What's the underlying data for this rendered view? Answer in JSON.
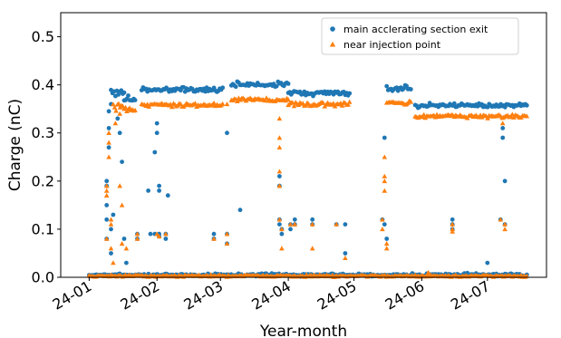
{
  "chart_data": {
    "type": "scatter",
    "xlabel": "Year-month",
    "ylabel": "Charge (nC)",
    "xticks": [
      "24-01",
      "24-02",
      "24-03",
      "24-04",
      "24-05",
      "24-06",
      "24-07"
    ],
    "yticks": [
      "0.0",
      "0.1",
      "0.2",
      "0.3",
      "0.4",
      "0.5"
    ],
    "xlim": [
      "2023-12-19",
      "2024-07-28"
    ],
    "ylim": [
      0,
      0.55
    ],
    "grid": false,
    "legend_position": "top-right",
    "series": [
      {
        "name": "main acclerating section exit",
        "marker": "circle",
        "color": "#1f77b4",
        "segments": [
          {
            "x0": "2024-01-01",
            "x1": "2024-07-19",
            "y": 0.005,
            "spread": 0.004
          },
          {
            "x0": "2024-01-11",
            "x1": "2024-01-17",
            "y": 0.385,
            "spread": 0.012
          },
          {
            "x0": "2024-01-17",
            "x1": "2024-01-22",
            "y": 0.37,
            "spread": 0.01
          },
          {
            "x0": "2024-01-25",
            "x1": "2024-03-02",
            "y": 0.39,
            "spread": 0.008
          },
          {
            "x0": "2024-03-06",
            "x1": "2024-04-01",
            "y": 0.4,
            "spread": 0.008
          },
          {
            "x0": "2024-04-01",
            "x1": "2024-04-29",
            "y": 0.383,
            "spread": 0.008
          },
          {
            "x0": "2024-05-16",
            "x1": "2024-05-27",
            "y": 0.393,
            "spread": 0.01
          },
          {
            "x0": "2024-05-29",
            "x1": "2024-07-19",
            "y": 0.357,
            "spread": 0.006
          }
        ],
        "points": [
          {
            "x": "2024-01-09",
            "y": 0.08
          },
          {
            "x": "2024-01-09",
            "y": 0.12
          },
          {
            "x": "2024-01-09",
            "y": 0.15
          },
          {
            "x": "2024-01-09",
            "y": 0.19
          },
          {
            "x": "2024-01-09",
            "y": 0.2
          },
          {
            "x": "2024-01-10",
            "y": 0.27
          },
          {
            "x": "2024-01-10",
            "y": 0.31
          },
          {
            "x": "2024-01-10",
            "y": 0.345
          },
          {
            "x": "2024-01-11",
            "y": 0.36
          },
          {
            "x": "2024-01-11",
            "y": 0.1
          },
          {
            "x": "2024-01-11",
            "y": 0.05
          },
          {
            "x": "2024-01-12",
            "y": 0.13
          },
          {
            "x": "2024-01-14",
            "y": 0.33
          },
          {
            "x": "2024-01-15",
            "y": 0.3
          },
          {
            "x": "2024-01-16",
            "y": 0.24
          },
          {
            "x": "2024-01-17",
            "y": 0.08
          },
          {
            "x": "2024-01-18",
            "y": 0.03
          },
          {
            "x": "2024-01-23",
            "y": 0.09
          },
          {
            "x": "2024-01-23",
            "y": 0.08
          },
          {
            "x": "2024-01-28",
            "y": 0.18
          },
          {
            "x": "2024-01-29",
            "y": 0.09
          },
          {
            "x": "2024-01-31",
            "y": 0.26
          },
          {
            "x": "2024-01-31",
            "y": 0.09
          },
          {
            "x": "2024-02-01",
            "y": 0.3
          },
          {
            "x": "2024-02-01",
            "y": 0.32
          },
          {
            "x": "2024-02-02",
            "y": 0.19
          },
          {
            "x": "2024-02-02",
            "y": 0.18
          },
          {
            "x": "2024-02-02",
            "y": 0.09
          },
          {
            "x": "2024-02-02",
            "y": 0.085
          },
          {
            "x": "2024-02-05",
            "y": 0.09
          },
          {
            "x": "2024-02-05",
            "y": 0.08
          },
          {
            "x": "2024-02-06",
            "y": 0.17
          },
          {
            "x": "2024-02-27",
            "y": 0.09
          },
          {
            "x": "2024-02-27",
            "y": 0.08
          },
          {
            "x": "2024-03-04",
            "y": 0.3
          },
          {
            "x": "2024-03-04",
            "y": 0.09
          },
          {
            "x": "2024-03-04",
            "y": 0.07
          },
          {
            "x": "2024-03-10",
            "y": 0.14
          },
          {
            "x": "2024-03-28",
            "y": 0.21
          },
          {
            "x": "2024-03-28",
            "y": 0.19
          },
          {
            "x": "2024-03-28",
            "y": 0.12
          },
          {
            "x": "2024-03-28",
            "y": 0.11
          },
          {
            "x": "2024-03-29",
            "y": 0.1
          },
          {
            "x": "2024-03-29",
            "y": 0.09
          },
          {
            "x": "2024-04-02",
            "y": 0.11
          },
          {
            "x": "2024-04-02",
            "y": 0.1
          },
          {
            "x": "2024-04-04",
            "y": 0.12
          },
          {
            "x": "2024-04-04",
            "y": 0.11
          },
          {
            "x": "2024-04-12",
            "y": 0.12
          },
          {
            "x": "2024-04-12",
            "y": 0.11
          },
          {
            "x": "2024-04-23",
            "y": 0.11
          },
          {
            "x": "2024-04-27",
            "y": 0.11
          },
          {
            "x": "2024-04-27",
            "y": 0.05
          },
          {
            "x": "2024-05-14",
            "y": 0.12
          },
          {
            "x": "2024-05-15",
            "y": 0.29
          },
          {
            "x": "2024-05-15",
            "y": 0.11
          },
          {
            "x": "2024-05-16",
            "y": 0.08
          },
          {
            "x": "2024-06-15",
            "y": 0.12
          },
          {
            "x": "2024-06-15",
            "y": 0.11
          },
          {
            "x": "2024-06-15",
            "y": 0.1
          },
          {
            "x": "2024-07-01",
            "y": 0.03
          },
          {
            "x": "2024-07-07",
            "y": 0.12
          },
          {
            "x": "2024-07-08",
            "y": 0.31
          },
          {
            "x": "2024-07-08",
            "y": 0.29
          },
          {
            "x": "2024-07-09",
            "y": 0.2
          },
          {
            "x": "2024-07-09",
            "y": 0.11
          }
        ]
      },
      {
        "name": "near injection point",
        "marker": "triangle",
        "color": "#ff7f0e",
        "segments": [
          {
            "x0": "2024-01-01",
            "x1": "2024-07-19",
            "y": 0.003,
            "spread": 0.003
          },
          {
            "x0": "2024-01-12",
            "x1": "2024-01-17",
            "y": 0.355,
            "spread": 0.012
          },
          {
            "x0": "2024-01-17",
            "x1": "2024-01-22",
            "y": 0.35,
            "spread": 0.01
          },
          {
            "x0": "2024-01-25",
            "x1": "2024-03-02",
            "y": 0.359,
            "spread": 0.006
          },
          {
            "x0": "2024-03-06",
            "x1": "2024-04-01",
            "y": 0.369,
            "spread": 0.007
          },
          {
            "x0": "2024-04-01",
            "x1": "2024-04-29",
            "y": 0.36,
            "spread": 0.007
          },
          {
            "x0": "2024-05-16",
            "x1": "2024-05-27",
            "y": 0.362,
            "spread": 0.008
          },
          {
            "x0": "2024-05-29",
            "x1": "2024-07-19",
            "y": 0.335,
            "spread": 0.006
          }
        ],
        "points": [
          {
            "x": "2024-01-09",
            "y": 0.17
          },
          {
            "x": "2024-01-09",
            "y": 0.19
          },
          {
            "x": "2024-01-09",
            "y": 0.18
          },
          {
            "x": "2024-01-09",
            "y": 0.08
          },
          {
            "x": "2024-01-10",
            "y": 0.25
          },
          {
            "x": "2024-01-10",
            "y": 0.28
          },
          {
            "x": "2024-01-10",
            "y": 0.3
          },
          {
            "x": "2024-01-11",
            "y": 0.11
          },
          {
            "x": "2024-01-11",
            "y": 0.12
          },
          {
            "x": "2024-01-11",
            "y": 0.06
          },
          {
            "x": "2024-01-12",
            "y": 0.03
          },
          {
            "x": "2024-01-13",
            "y": 0.32
          },
          {
            "x": "2024-01-15",
            "y": 0.34
          },
          {
            "x": "2024-01-15",
            "y": 0.19
          },
          {
            "x": "2024-01-16",
            "y": 0.15
          },
          {
            "x": "2024-01-16",
            "y": 0.07
          },
          {
            "x": "2024-01-18",
            "y": 0.06
          },
          {
            "x": "2024-01-23",
            "y": 0.09
          },
          {
            "x": "2024-01-23",
            "y": 0.08
          },
          {
            "x": "2024-02-01",
            "y": 0.09
          },
          {
            "x": "2024-02-02",
            "y": 0.085
          },
          {
            "x": "2024-02-05",
            "y": 0.09
          },
          {
            "x": "2024-02-27",
            "y": 0.08
          },
          {
            "x": "2024-03-04",
            "y": 0.36
          },
          {
            "x": "2024-03-04",
            "y": 0.09
          },
          {
            "x": "2024-03-04",
            "y": 0.07
          },
          {
            "x": "2024-03-28",
            "y": 0.33
          },
          {
            "x": "2024-03-28",
            "y": 0.29
          },
          {
            "x": "2024-03-28",
            "y": 0.27
          },
          {
            "x": "2024-03-28",
            "y": 0.22
          },
          {
            "x": "2024-03-28",
            "y": 0.19
          },
          {
            "x": "2024-03-28",
            "y": 0.12
          },
          {
            "x": "2024-03-29",
            "y": 0.1
          },
          {
            "x": "2024-03-29",
            "y": 0.06
          },
          {
            "x": "2024-04-02",
            "y": 0.11
          },
          {
            "x": "2024-04-04",
            "y": 0.11
          },
          {
            "x": "2024-04-12",
            "y": 0.11
          },
          {
            "x": "2024-04-12",
            "y": 0.06
          },
          {
            "x": "2024-04-23",
            "y": 0.11
          },
          {
            "x": "2024-04-27",
            "y": 0.04
          },
          {
            "x": "2024-05-14",
            "y": 0.12
          },
          {
            "x": "2024-05-14",
            "y": 0.1
          },
          {
            "x": "2024-05-15",
            "y": 0.25
          },
          {
            "x": "2024-05-15",
            "y": 0.21
          },
          {
            "x": "2024-05-15",
            "y": 0.2
          },
          {
            "x": "2024-05-15",
            "y": 0.18
          },
          {
            "x": "2024-05-16",
            "y": 0.07
          },
          {
            "x": "2024-05-16",
            "y": 0.06
          },
          {
            "x": "2024-06-15",
            "y": 0.11
          },
          {
            "x": "2024-06-15",
            "y": 0.1
          },
          {
            "x": "2024-06-15",
            "y": 0.095
          },
          {
            "x": "2024-06-04",
            "y": 0.01
          },
          {
            "x": "2024-07-07",
            "y": 0.12
          },
          {
            "x": "2024-07-08",
            "y": 0.32
          },
          {
            "x": "2024-07-09",
            "y": 0.11
          },
          {
            "x": "2024-07-09",
            "y": 0.1
          }
        ]
      }
    ]
  }
}
